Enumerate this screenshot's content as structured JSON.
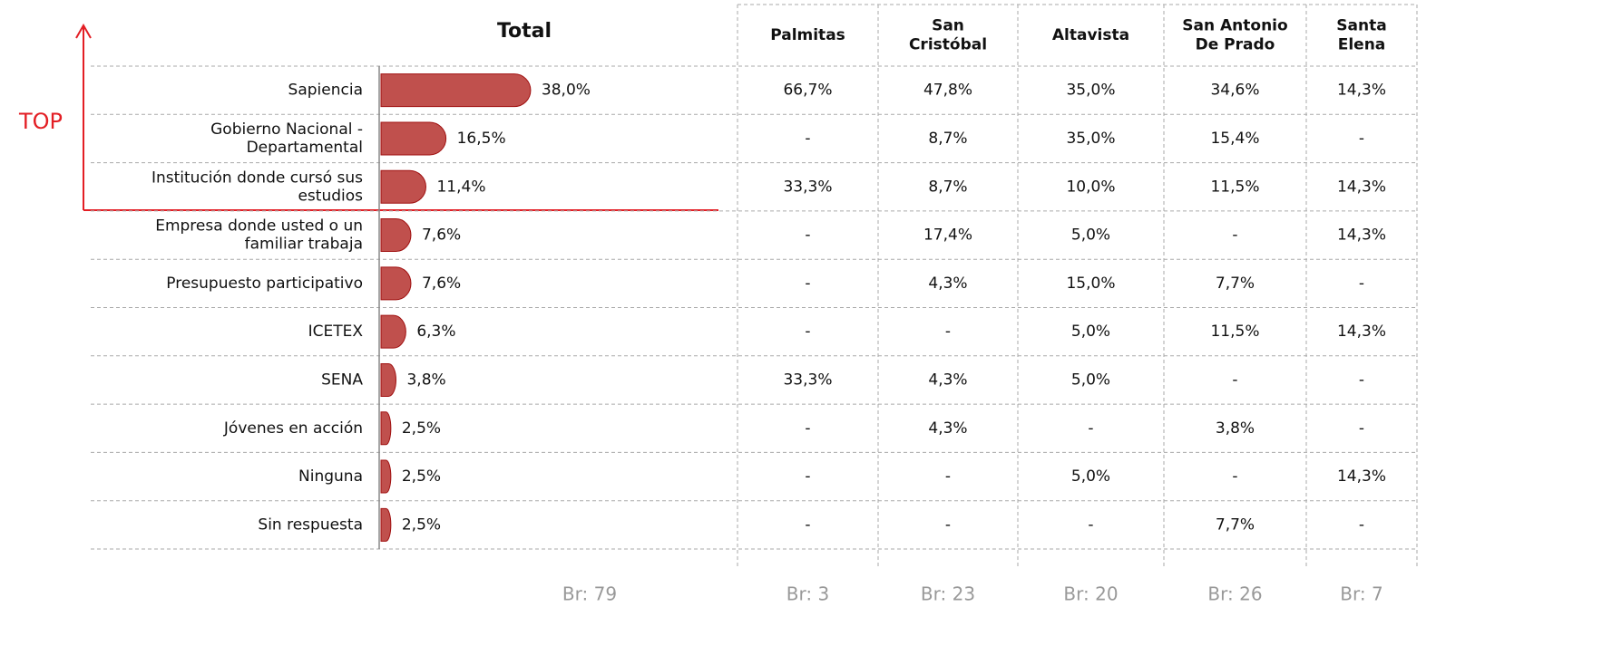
{
  "annotation": "TOP",
  "chart_data": {
    "type": "bar",
    "orientation": "horizontal",
    "title": "Total",
    "color": "#c0504d",
    "categories": [
      "Sapiencia",
      "Gobierno Nacional - Departamental",
      "Institución donde cursó sus estudios",
      "Empresa donde usted o un familiar trabaja",
      "Presupuesto participativo",
      "ICETEX",
      "SENA",
      "Jóvenes en acción",
      "Ninguna",
      "Sin respuesta"
    ],
    "values": [
      38.0,
      16.5,
      11.4,
      7.6,
      7.6,
      6.3,
      3.8,
      2.5,
      2.5,
      2.5
    ],
    "value_labels": [
      "38,0%",
      "16,5%",
      "11,4%",
      "7,6%",
      "7,6%",
      "6,3%",
      "3,8%",
      "2,5%",
      "2,5%",
      "2,5%"
    ],
    "base": "Br: 79"
  },
  "table": {
    "columns": [
      "Palmitas",
      "San Cristóbal",
      "Altavista",
      "San Antonio De Prado",
      "Santa Elena"
    ],
    "rows": [
      [
        "66,7%",
        "47,8%",
        "35,0%",
        "34,6%",
        "14,3%"
      ],
      [
        "-",
        "8,7%",
        "35,0%",
        "15,4%",
        "-"
      ],
      [
        "33,3%",
        "8,7%",
        "10,0%",
        "11,5%",
        "14,3%"
      ],
      [
        "-",
        "17,4%",
        "5,0%",
        "-",
        "14,3%"
      ],
      [
        "-",
        "4,3%",
        "15,0%",
        "7,7%",
        "-"
      ],
      [
        "-",
        "-",
        "5,0%",
        "11,5%",
        "14,3%"
      ],
      [
        "33,3%",
        "4,3%",
        "5,0%",
        "-",
        "-"
      ],
      [
        "-",
        "4,3%",
        "-",
        "3,8%",
        "-"
      ],
      [
        "-",
        "-",
        "5,0%",
        "-",
        "14,3%"
      ],
      [
        "-",
        "-",
        "-",
        "7,7%",
        "-"
      ]
    ],
    "bases": [
      "Br: 3",
      "Br: 23",
      "Br: 20",
      "Br: 26",
      "Br: 7"
    ]
  }
}
